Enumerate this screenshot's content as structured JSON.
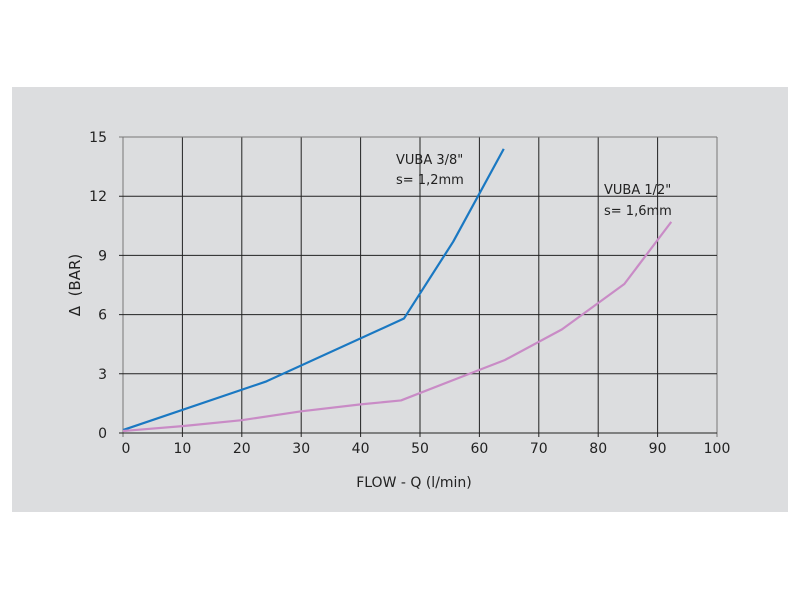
{
  "chart_data": {
    "type": "line",
    "title": "",
    "xlabel": "FLOW - Q (l/min)",
    "ylabel": "Δ  (BAR)",
    "xlim": [
      0,
      100
    ],
    "ylim": [
      0,
      15
    ],
    "xticks": [
      0,
      10,
      20,
      30,
      40,
      50,
      60,
      70,
      80,
      90,
      100
    ],
    "yticks": [
      0,
      3,
      6,
      9,
      12,
      15
    ],
    "grid": true,
    "series": [
      {
        "name": "VUBA 3/8\"",
        "annotation": "s= 1,2mm",
        "color": "#1a78c2",
        "x": [
          0,
          24,
          47.3,
          55.6,
          64.1
        ],
        "y": [
          0.15,
          2.6,
          5.8,
          9.7,
          14.4
        ]
      },
      {
        "name": "VUBA 1/2\"",
        "annotation": "s= 1,6mm",
        "color": "#c98bc6",
        "x": [
          0,
          10,
          20,
          30,
          40,
          46.8,
          60,
          64.3,
          73.9,
          84.4,
          92.3
        ],
        "y": [
          0.1,
          0.35,
          0.65,
          1.1,
          1.45,
          1.65,
          3.2,
          3.7,
          5.25,
          7.55,
          10.7
        ]
      }
    ]
  }
}
